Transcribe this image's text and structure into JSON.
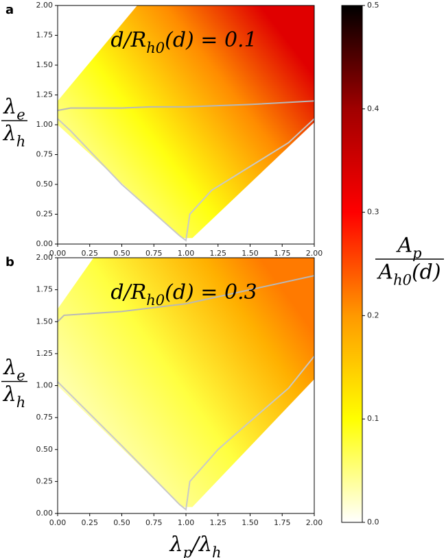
{
  "chart_data": [
    {
      "type": "heatmap-contour",
      "panel_label": "a",
      "title": {
        "base": "d/R",
        "sub": "h0",
        "suffix": "(d) = 0.1"
      },
      "ylabel": {
        "numerator": {
          "base": "λ",
          "sub": "e"
        },
        "denominator": {
          "base": "λ",
          "sub": "h"
        }
      },
      "xlim": [
        0,
        2
      ],
      "ylim": [
        0,
        2
      ],
      "xticks": [
        {
          "value": 0,
          "label": "0.00"
        },
        {
          "value": 0.25,
          "label": "0.25"
        },
        {
          "value": 0.5,
          "label": "0.50"
        },
        {
          "value": 0.75,
          "label": "0.75"
        },
        {
          "value": 1,
          "label": "1.00"
        },
        {
          "value": 1.25,
          "label": "1.25"
        },
        {
          "value": 1.5,
          "label": "1.50"
        },
        {
          "value": 1.75,
          "label": "1.75"
        },
        {
          "value": 2,
          "label": "2.00"
        }
      ],
      "yticks": [
        {
          "value": 0,
          "label": "0.00"
        },
        {
          "value": 0.25,
          "label": "0.25"
        },
        {
          "value": 0.5,
          "label": "0.50"
        },
        {
          "value": 0.75,
          "label": "0.75"
        },
        {
          "value": 1,
          "label": "1.00"
        },
        {
          "value": 1.25,
          "label": "1.25"
        },
        {
          "value": 1.5,
          "label": "1.50"
        },
        {
          "value": 1.75,
          "label": "1.75"
        },
        {
          "value": 2,
          "label": "2.00"
        }
      ],
      "series": [
        {
          "color": "#b8b8b8",
          "x": [
            0,
            0.1,
            0.5,
            0.72,
            1,
            1.5,
            2
          ],
          "values": [
            1.12,
            1.14,
            1.14,
            1.15,
            1.15,
            1.17,
            1.2
          ]
        },
        {
          "color": "#c8c8c8",
          "x": [
            0,
            0.1,
            0.5,
            0.95,
            1,
            1.03,
            1.2,
            1.5,
            1.8,
            2
          ],
          "values": [
            1.05,
            0.95,
            0.5,
            0.07,
            0.03,
            0.25,
            0.45,
            0.65,
            0.85,
            1.05
          ]
        }
      ]
    },
    {
      "type": "heatmap-contour",
      "panel_label": "b",
      "title": {
        "base": "d/R",
        "sub": "h0",
        "suffix": "(d) = 0.3"
      },
      "ylabel": {
        "numerator": {
          "base": "λ",
          "sub": "e"
        },
        "denominator": {
          "base": "λ",
          "sub": "h"
        }
      },
      "xlabel": {
        "base": "λ",
        "sub": "p",
        "suffix": "/λ",
        "sub2": "h"
      },
      "xlim": [
        0,
        2
      ],
      "ylim": [
        0,
        2
      ],
      "xticks": [
        {
          "value": 0,
          "label": "0.00"
        },
        {
          "value": 0.25,
          "label": "0.25"
        },
        {
          "value": 0.5,
          "label": "0.50"
        },
        {
          "value": 0.75,
          "label": "0.75"
        },
        {
          "value": 1,
          "label": "1.00"
        },
        {
          "value": 1.25,
          "label": "1.25"
        },
        {
          "value": 1.5,
          "label": "1.50"
        },
        {
          "value": 1.75,
          "label": "1.75"
        },
        {
          "value": 2,
          "label": "2.00"
        }
      ],
      "yticks": [
        {
          "value": 0,
          "label": "0.00"
        },
        {
          "value": 0.25,
          "label": "0.25"
        },
        {
          "value": 0.5,
          "label": "0.50"
        },
        {
          "value": 0.75,
          "label": "0.75"
        },
        {
          "value": 1,
          "label": "1.00"
        },
        {
          "value": 1.25,
          "label": "1.25"
        },
        {
          "value": 1.5,
          "label": "1.50"
        },
        {
          "value": 1.75,
          "label": "1.75"
        },
        {
          "value": 2,
          "label": "2.00"
        }
      ],
      "series": [
        {
          "color": "#b8b8b8",
          "x": [
            0,
            0.05,
            0.5,
            1,
            1.5,
            2
          ],
          "values": [
            1.5,
            1.55,
            1.58,
            1.64,
            1.75,
            1.86
          ]
        },
        {
          "color": "#c8c8c8",
          "x": [
            0,
            0.5,
            0.95,
            1,
            1.03,
            1.25,
            1.5,
            1.8,
            2
          ],
          "values": [
            1.03,
            0.53,
            0.07,
            0.03,
            0.25,
            0.5,
            0.72,
            0.98,
            1.23
          ]
        }
      ]
    }
  ],
  "colorbar": {
    "lim": [
      0,
      0.5
    ],
    "ticks": [
      {
        "value": 0,
        "label": "0.0"
      },
      {
        "value": 0.1,
        "label": "0.1"
      },
      {
        "value": 0.2,
        "label": "0.2"
      },
      {
        "value": 0.3,
        "label": "0.3"
      },
      {
        "value": 0.4,
        "label": "0.4"
      },
      {
        "value": 0.5,
        "label": "0.5"
      }
    ],
    "label": {
      "numerator": {
        "base": "A",
        "sub": "p"
      },
      "denominator": {
        "base": "A",
        "sub": "h0",
        "suffix": "(d)"
      }
    }
  }
}
